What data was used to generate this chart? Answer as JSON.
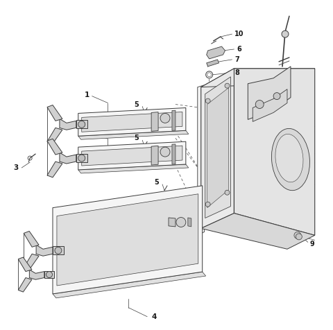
{
  "bg_color": "#ffffff",
  "line_color": "#3a3a3a",
  "label_color": "#1a1a1a",
  "fig_width": 4.8,
  "fig_height": 4.76,
  "dpi": 100,
  "label_fontsize": 7.5
}
